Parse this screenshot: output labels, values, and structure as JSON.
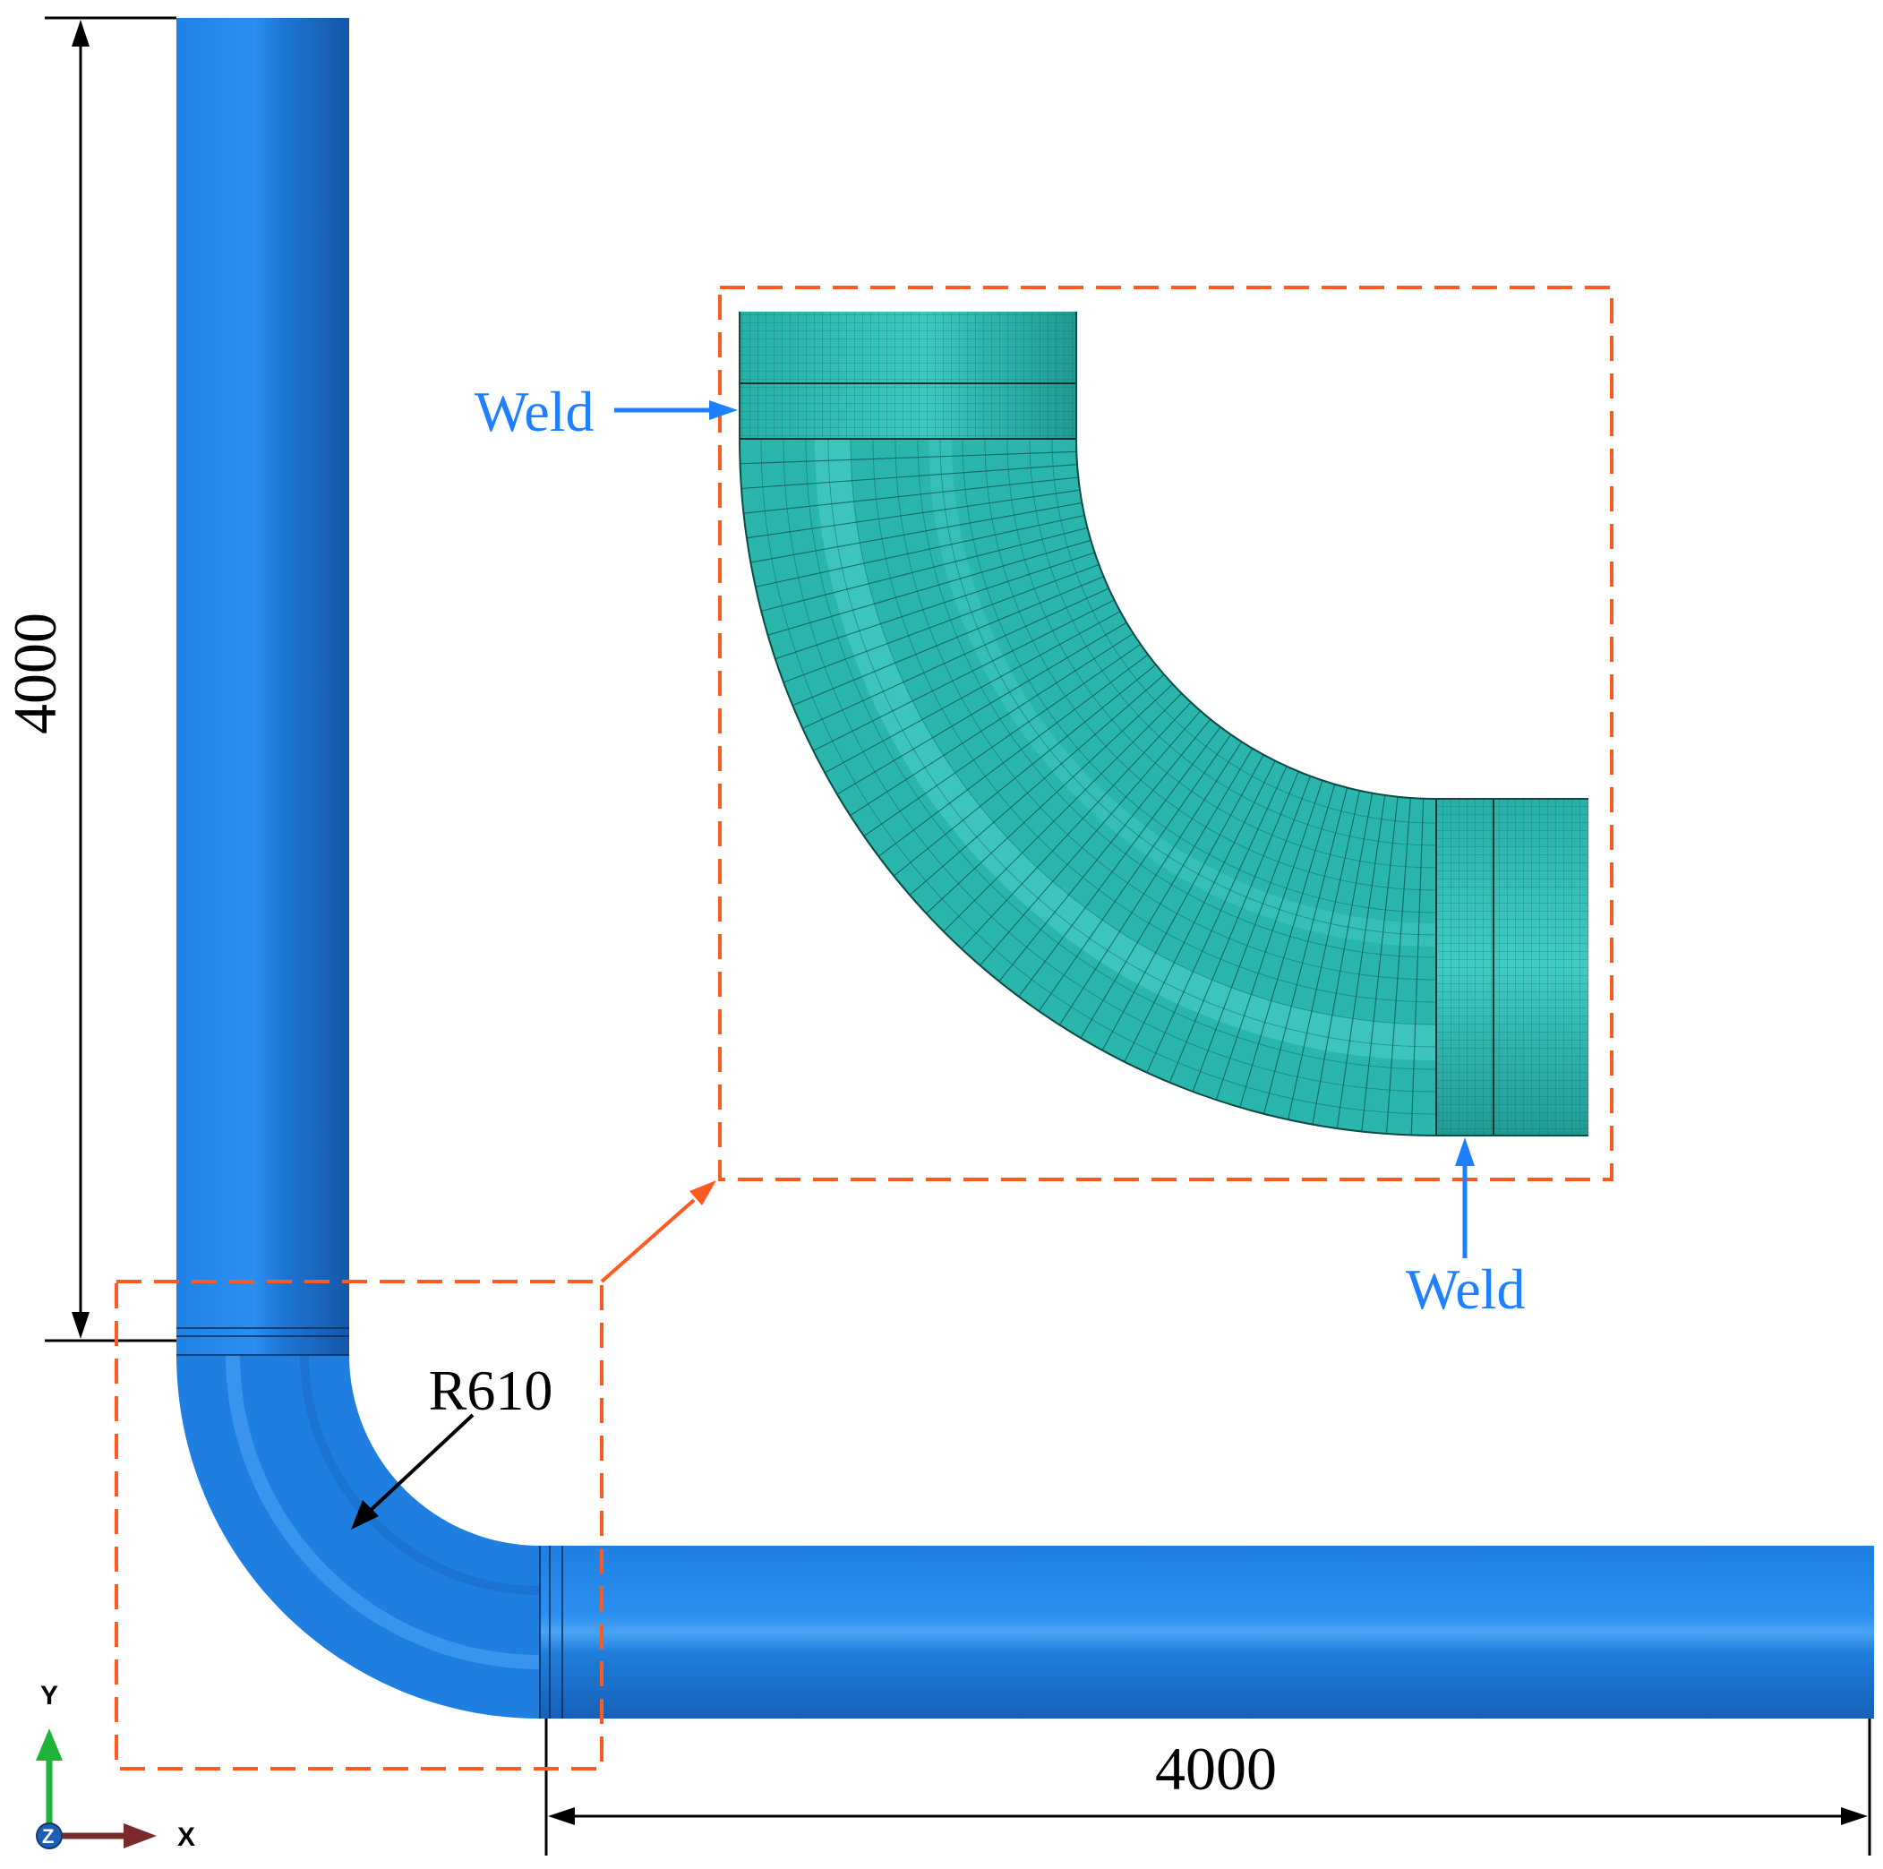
{
  "dimensions": {
    "vertical_length": "4000",
    "horizontal_length": "4000",
    "bend_radius": "R610"
  },
  "callouts": {
    "weld_top": "Weld",
    "weld_bottom": "Weld"
  },
  "axes": {
    "y_label": "Y",
    "x_label": "X",
    "z_label": "Z"
  },
  "colors": {
    "pipe": "#1e7fe0",
    "pipe_dark": "#1560b0",
    "pipe_highlight": "#5ab0ff",
    "mesh": "#2ab5ad",
    "mesh_line": "#0b5e5a",
    "callout_box": "#ff5a1f",
    "weld_label": "#1e7fff",
    "axis_y": "#1fb33a",
    "axis_x": "#7a2a2a",
    "axis_z": "#1f5fb3"
  }
}
